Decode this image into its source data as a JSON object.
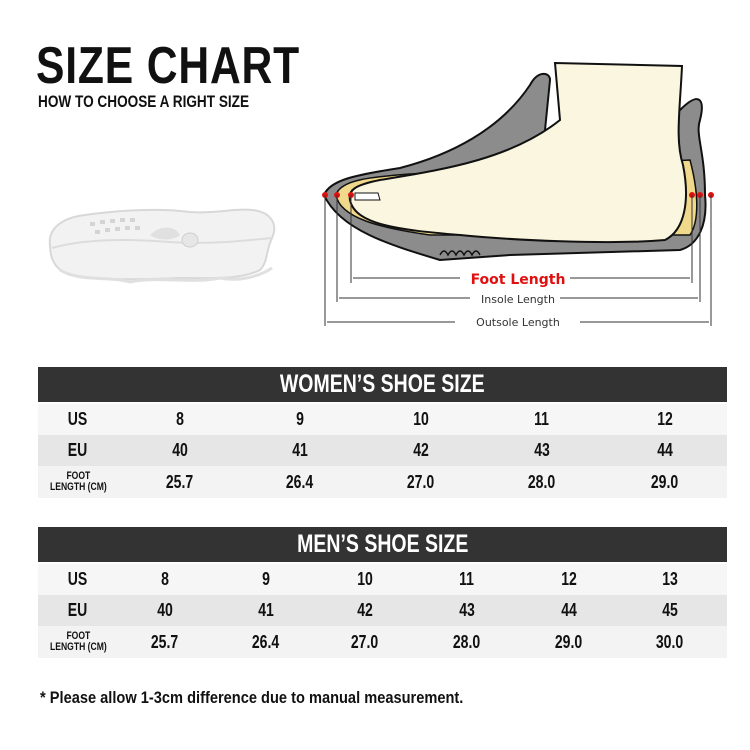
{
  "header": {
    "title": "SIZE CHART",
    "subtitle": "HOW TO CHOOSE A RIGHT SIZE"
  },
  "diagram": {
    "foot_length": "Foot Length",
    "insole_length": "Insole Length",
    "outsole_length": "Outsole Length",
    "accent_color": "#e01010"
  },
  "women": {
    "title": "WOMEN’S SHOE SIZE",
    "labels": {
      "us": "US",
      "eu": "EU",
      "foot1": "FOOT",
      "foot2": "LENGTH (CM)"
    },
    "us": [
      "8",
      "9",
      "10",
      "11",
      "12"
    ],
    "eu": [
      "40",
      "41",
      "42",
      "43",
      "44"
    ],
    "foot": [
      "25.7",
      "26.4",
      "27.0",
      "28.0",
      "29.0"
    ]
  },
  "men": {
    "title": "MEN’S SHOE SIZE",
    "labels": {
      "us": "US",
      "eu": "EU",
      "foot1": "FOOT",
      "foot2": "LENGTH (CM)"
    },
    "us": [
      "8",
      "9",
      "10",
      "11",
      "12",
      "13"
    ],
    "eu": [
      "40",
      "41",
      "42",
      "43",
      "44",
      "45"
    ],
    "foot": [
      "25.7",
      "26.4",
      "27.0",
      "28.0",
      "29.0",
      "30.0"
    ]
  },
  "note": "* Please allow 1-3cm difference due to manual measurement."
}
